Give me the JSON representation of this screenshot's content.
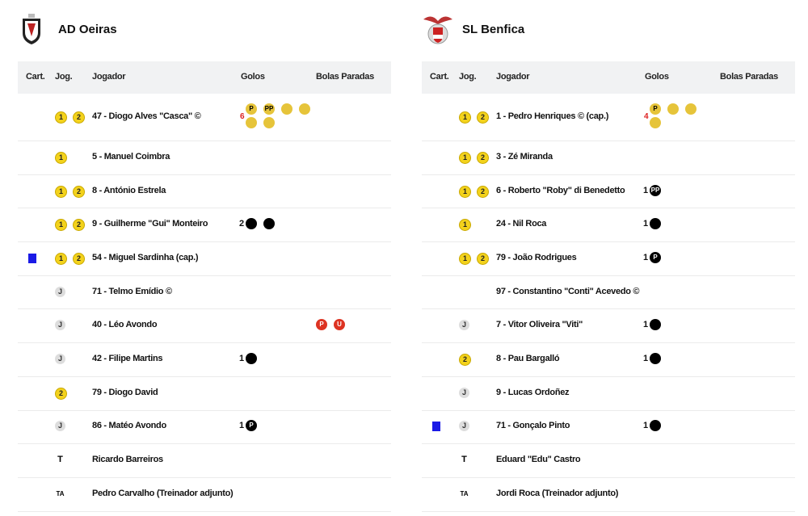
{
  "teams": [
    {
      "name": "AD Oeiras",
      "headers": [
        "Cart.",
        "Jog.",
        "Jogador",
        "Golos",
        "Bolas Paradas"
      ],
      "players": [
        {
          "jog": [
            "1",
            "2"
          ],
          "name": "47 - Diogo Alves \"Casca\" ©",
          "goals": 6,
          "goal_marks": [
            "P",
            "PP"
          ],
          "highlight": true
        },
        {
          "jog": [
            "1"
          ],
          "name": "5 - Manuel Coimbra"
        },
        {
          "jog": [
            "1",
            "2"
          ],
          "name": "8 - António Estrela"
        },
        {
          "jog": [
            "1",
            "2"
          ],
          "name": "9 - Guilherme \"Gui\" Monteiro",
          "goals": 2,
          "goal_marks": []
        },
        {
          "card": "blue",
          "jog": [
            "1",
            "2"
          ],
          "name": "54 - Miguel Sardinha (cap.)"
        },
        {
          "jog": [
            "J"
          ],
          "name": "71 - Telmo Emídio ©"
        },
        {
          "jog": [
            "J"
          ],
          "name": "40 - Léo Avondo",
          "set_pieces": [
            "P",
            "U"
          ]
        },
        {
          "jog": [
            "J"
          ],
          "name": "42 - Filipe Martins",
          "goals": 1,
          "goal_marks": []
        },
        {
          "jog": [
            "2"
          ],
          "name": "79 - Diogo David"
        },
        {
          "jog": [
            "J"
          ],
          "name": "86 - Matéo Avondo",
          "goals": 1,
          "goal_marks": [
            "P"
          ]
        },
        {
          "jog": [
            "T"
          ],
          "name": "Ricardo Barreiros"
        },
        {
          "jog": [
            "TA"
          ],
          "name": "Pedro Carvalho (Treinador adjunto)"
        }
      ]
    },
    {
      "name": "SL Benfica",
      "headers": [
        "Cart.",
        "Jog.",
        "Jogador",
        "Golos",
        "Bolas Paradas"
      ],
      "players": [
        {
          "jog": [
            "1",
            "2"
          ],
          "name": "1 - Pedro Henriques © (cap.)",
          "goals": 4,
          "goal_marks": [
            "P"
          ],
          "highlight": true
        },
        {
          "jog": [
            "1",
            "2"
          ],
          "name": "3 - Zé Miranda"
        },
        {
          "jog": [
            "1",
            "2"
          ],
          "name": "6 - Roberto \"Roby\" di Benedetto",
          "goals": 1,
          "goal_marks": [
            "PP"
          ]
        },
        {
          "jog": [
            "1"
          ],
          "name": "24 - Nil Roca",
          "goals": 1,
          "goal_marks": []
        },
        {
          "jog": [
            "1",
            "2"
          ],
          "name": "79 - João Rodrigues",
          "goals": 1,
          "goal_marks": [
            "P"
          ]
        },
        {
          "jog": [],
          "name": "97 - Constantino \"Conti\" Acevedo ©"
        },
        {
          "jog": [
            "J"
          ],
          "name": "7 - Vitor Oliveira \"Viti\"",
          "goals": 1,
          "goal_marks": []
        },
        {
          "jog": [
            "2"
          ],
          "name": "8 - Pau Bargalló",
          "goals": 1,
          "goal_marks": []
        },
        {
          "jog": [
            "J"
          ],
          "name": "9 - Lucas Ordoñez"
        },
        {
          "card": "blue",
          "jog": [
            "J"
          ],
          "name": "71 - Gonçalo Pinto",
          "goals": 1,
          "goal_marks": []
        },
        {
          "jog": [
            "T"
          ],
          "name": "Eduard \"Edu\" Castro"
        },
        {
          "jog": [
            "TA"
          ],
          "name": "Jordi Roca (Treinador adjunto)"
        }
      ]
    }
  ]
}
